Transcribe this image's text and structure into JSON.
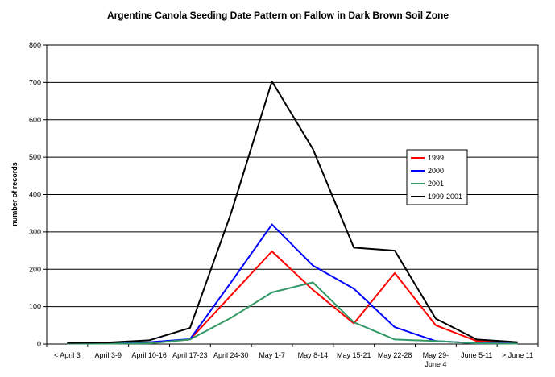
{
  "chart_data": {
    "type": "line",
    "title": "Argentine Canola Seeding Date Pattern on Fallow in Dark Brown Soil Zone",
    "xlabel": "",
    "ylabel": "number of records",
    "ylim": [
      0,
      800
    ],
    "yticks": [
      "0",
      "100",
      "200",
      "300",
      "400",
      "500",
      "600",
      "700",
      "800"
    ],
    "categories": [
      "< April 3",
      "April 3-9",
      "April 10-16",
      "April 17-23",
      "April 24-30",
      "May 1-7",
      "May 8-14",
      "May 15-21",
      "May 22-28",
      "May 29-\nJune 4",
      "June 5-11",
      "> June 11"
    ],
    "grid": "horizontal",
    "legend": "right",
    "series": [
      {
        "name": "1999",
        "color": "#ff0000",
        "values": [
          2,
          2,
          3,
          12,
          130,
          248,
          145,
          55,
          190,
          50,
          8,
          3
        ]
      },
      {
        "name": "2000",
        "color": "#0000ff",
        "values": [
          2,
          2,
          5,
          13,
          165,
          320,
          210,
          148,
          45,
          8,
          2,
          2
        ]
      },
      {
        "name": "2001",
        "color": "#339966",
        "values": [
          1,
          1,
          2,
          12,
          70,
          138,
          165,
          58,
          12,
          8,
          2,
          1
        ]
      },
      {
        "name": "1999-2001",
        "color": "#000000",
        "values": [
          3,
          4,
          10,
          43,
          350,
          703,
          522,
          258,
          250,
          68,
          12,
          5
        ]
      }
    ]
  }
}
